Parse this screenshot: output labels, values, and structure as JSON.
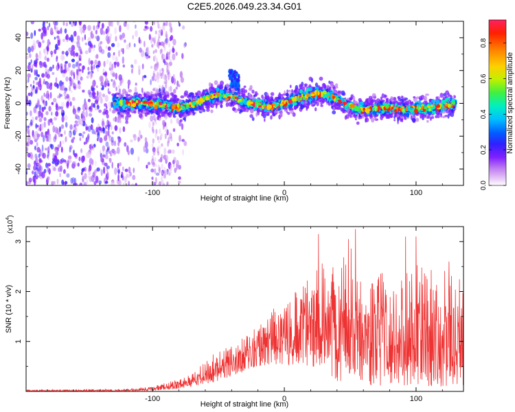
{
  "title": "C2E5.2026.049.23.34.G01",
  "chart_data": [
    {
      "type": "heatmap",
      "title": "C2E5.2026.049.23.34.G01",
      "xlabel": "Height of straight line (km)",
      "ylabel": "Frequency (Hz)",
      "xlim": [
        -196,
        136
      ],
      "ylim": [
        -50,
        50
      ],
      "x_ticks": [
        -100,
        0,
        100
      ],
      "x_tick_labels": [
        "-100",
        "0",
        "100"
      ],
      "y_ticks": [
        -40,
        -20,
        0,
        20,
        40
      ],
      "y_tick_labels": [
        "-40",
        "-20",
        "0",
        "20",
        "40"
      ],
      "colorbar": {
        "label": "Normalized spectral amplitude",
        "range": [
          0,
          0.93
        ],
        "ticks": [
          0.0,
          0.2,
          0.4,
          0.6,
          0.8
        ],
        "tick_labels": [
          "0.0",
          "0.2",
          "0.4",
          "0.6",
          "0.8"
        ],
        "colormap": [
          "#ffffff",
          "#e8c8f8",
          "#c080f0",
          "#8020ff",
          "#3020ff",
          "#0060ff",
          "#00c0ff",
          "#00f0c0",
          "#40f040",
          "#c0f000",
          "#ffd000",
          "#ff8000",
          "#ff2000",
          "#ff2060"
        ]
      },
      "ridge": {
        "x": [
          -130,
          -110,
          -90,
          -80,
          -70,
          -60,
          -50,
          -40,
          -30,
          -20,
          -10,
          0,
          10,
          20,
          30,
          40,
          50,
          60,
          70,
          80,
          90,
          100,
          110,
          120,
          130
        ],
        "freq": [
          0,
          0,
          -1,
          -3,
          -1,
          3,
          5,
          4,
          1,
          -1,
          -2,
          0,
          3,
          5,
          6,
          3,
          -2,
          -4,
          -3,
          -3,
          -4,
          -3,
          -3,
          -2,
          0
        ]
      },
      "band_halfwidth_hz": 6,
      "noise_region_xlim": [
        -196,
        -75
      ]
    },
    {
      "type": "line",
      "xlabel": "Height of straight line (km)",
      "ylabel": "SNR (10 * v/v)",
      "scale_label": "(x10",
      "scale_exponent": "4",
      "xlim": [
        -196,
        136
      ],
      "ylim": [
        0,
        3.3
      ],
      "x_ticks": [
        -100,
        0,
        100
      ],
      "x_tick_labels": [
        "-100",
        "0",
        "100"
      ],
      "y_ticks": [
        1,
        2,
        3
      ],
      "y_tick_labels": [
        "1",
        "2",
        "3"
      ],
      "series": [
        {
          "name": "SNR",
          "color": "#ee3333",
          "envelope_x": [
            -196,
            -120,
            -100,
            -80,
            -70,
            -60,
            -50,
            -40,
            -30,
            -20,
            -10,
            0,
            10,
            20,
            30,
            40,
            50,
            60,
            70,
            80,
            90,
            100,
            110,
            120,
            136
          ],
          "envelope_upper": [
            0.03,
            0.05,
            0.1,
            0.25,
            0.35,
            0.6,
            0.85,
            0.9,
            1.1,
            1.3,
            1.6,
            1.9,
            2.1,
            2.3,
            2.6,
            2.5,
            3.25,
            2.5,
            2.6,
            2.5,
            2.3,
            2.6,
            2.4,
            2.6,
            2.4
          ],
          "envelope_lower": [
            0.0,
            0.0,
            0.02,
            0.05,
            0.1,
            0.15,
            0.2,
            0.3,
            0.4,
            0.5,
            0.55,
            0.5,
            0.55,
            0.5,
            0.45,
            0.2,
            0.2,
            0.15,
            0.1,
            0.15,
            0.1,
            0.15,
            0.1,
            0.1,
            0.1
          ],
          "peak_points": [
            [
              26,
              3.15
            ],
            [
              54,
              3.25
            ],
            [
              92,
              3.1
            ],
            [
              100,
              3.1
            ],
            [
              125,
              2.6
            ]
          ]
        }
      ]
    }
  ]
}
